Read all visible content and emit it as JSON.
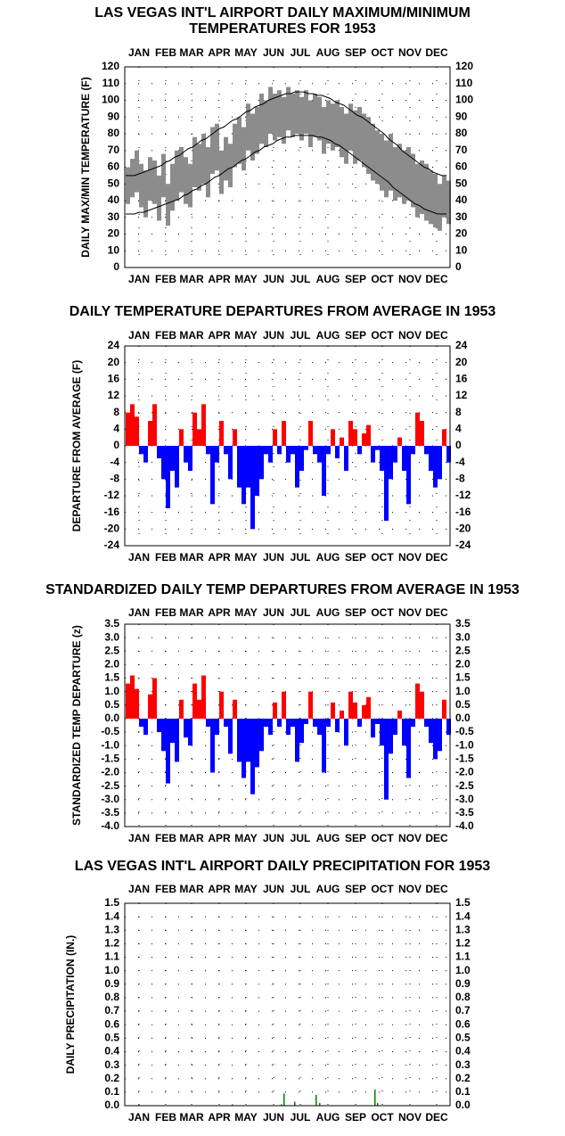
{
  "chart_data": [
    {
      "type": "range",
      "title": [
        "LAS VEGAS INT'L AIRPORT DAILY MAXIMUM/MINIMUM",
        "TEMPERATURES FOR 1953"
      ],
      "y_label": "DAILY MAX/MIN TEMPERATURE (F)",
      "xlim": [
        0,
        365
      ],
      "xticks": [
        {
          "value": 16,
          "label": "JAN"
        },
        {
          "value": 46,
          "label": "FEB"
        },
        {
          "value": 75,
          "label": "MAR"
        },
        {
          "value": 106,
          "label": "APR"
        },
        {
          "value": 136,
          "label": "MAY"
        },
        {
          "value": 167,
          "label": "JUN"
        },
        {
          "value": 197,
          "label": "JUL"
        },
        {
          "value": 228,
          "label": "AUG"
        },
        {
          "value": 259,
          "label": "SEP"
        },
        {
          "value": 289,
          "label": "OCT"
        },
        {
          "value": 320,
          "label": "NOV"
        },
        {
          "value": 350,
          "label": "DEC"
        }
      ],
      "ylim": [
        0,
        120
      ],
      "yticks": [
        0,
        10,
        20,
        30,
        40,
        50,
        60,
        70,
        80,
        90,
        100,
        110,
        120
      ],
      "grid": true,
      "bar_width": 5,
      "color": "#8c8c8c",
      "normal_color": "#000000",
      "x": [
        1,
        6,
        11,
        16,
        21,
        26,
        31,
        36,
        41,
        46,
        51,
        56,
        61,
        66,
        71,
        76,
        81,
        86,
        91,
        96,
        101,
        106,
        111,
        116,
        121,
        126,
        131,
        136,
        141,
        146,
        151,
        156,
        161,
        166,
        171,
        176,
        181,
        186,
        191,
        196,
        201,
        206,
        211,
        216,
        221,
        226,
        231,
        236,
        241,
        246,
        251,
        256,
        261,
        266,
        271,
        276,
        281,
        286,
        291,
        296,
        301,
        306,
        311,
        316,
        321,
        326,
        331,
        336,
        341,
        346,
        351,
        356,
        361
      ],
      "max_values": [
        60,
        65,
        70,
        62,
        58,
        66,
        64,
        55,
        68,
        50,
        62,
        70,
        72,
        66,
        62,
        78,
        74,
        80,
        72,
        84,
        86,
        70,
        78,
        74,
        86,
        90,
        84,
        98,
        92,
        96,
        104,
        100,
        108,
        104,
        106,
        102,
        108,
        104,
        106,
        102,
        106,
        100,
        104,
        102,
        96,
        100,
        98,
        100,
        96,
        92,
        98,
        94,
        96,
        92,
        90,
        86,
        82,
        80,
        76,
        80,
        72,
        74,
        70,
        72,
        68,
        62,
        64,
        62,
        58,
        56,
        50,
        55,
        52
      ],
      "min_values": [
        38,
        42,
        45,
        36,
        30,
        40,
        38,
        28,
        42,
        25,
        34,
        40,
        45,
        38,
        36,
        48,
        46,
        50,
        42,
        56,
        58,
        44,
        52,
        48,
        60,
        62,
        58,
        70,
        64,
        68,
        74,
        72,
        80,
        76,
        78,
        74,
        82,
        78,
        80,
        76,
        80,
        72,
        78,
        76,
        68,
        74,
        70,
        72,
        66,
        62,
        70,
        62,
        64,
        60,
        56,
        52,
        50,
        46,
        42,
        46,
        40,
        42,
        38,
        40,
        36,
        30,
        32,
        28,
        26,
        24,
        22,
        30,
        26
      ],
      "normal_max": [
        55,
        55,
        55,
        56,
        57,
        58,
        59,
        60,
        61,
        63,
        64,
        66,
        67,
        69,
        71,
        72,
        74,
        76,
        77,
        79,
        81,
        83,
        84,
        86,
        88,
        89,
        91,
        93,
        94,
        96,
        97,
        98,
        100,
        101,
        102,
        103,
        104,
        104,
        105,
        105,
        105,
        104,
        104,
        103,
        103,
        102,
        101,
        99,
        98,
        97,
        95,
        93,
        91,
        90,
        88,
        86,
        84,
        82,
        80,
        77,
        75,
        73,
        70,
        68,
        66,
        64,
        62,
        60,
        59,
        57,
        56,
        55,
        55
      ],
      "normal_min": [
        32,
        32,
        32,
        33,
        33,
        34,
        35,
        36,
        37,
        38,
        39,
        40,
        41,
        43,
        44,
        46,
        47,
        49,
        50,
        52,
        54,
        55,
        57,
        59,
        60,
        62,
        64,
        65,
        67,
        69,
        70,
        72,
        73,
        74,
        76,
        77,
        78,
        78,
        79,
        79,
        79,
        79,
        79,
        78,
        78,
        77,
        76,
        74,
        73,
        71,
        69,
        67,
        65,
        63,
        61,
        59,
        57,
        55,
        53,
        51,
        48,
        46,
        44,
        42,
        40,
        38,
        37,
        35,
        34,
        33,
        32,
        32,
        32
      ]
    },
    {
      "type": "bar",
      "title": "DAILY TEMPERATURE DEPARTURES FROM AVERAGE IN 1953",
      "y_label": "DEPARTURE FROM AVERAGE (F)",
      "xlim": [
        0,
        365
      ],
      "xticks": [
        {
          "value": 16,
          "label": "JAN"
        },
        {
          "value": 46,
          "label": "FEB"
        },
        {
          "value": 75,
          "label": "MAR"
        },
        {
          "value": 106,
          "label": "APR"
        },
        {
          "value": 136,
          "label": "MAY"
        },
        {
          "value": 167,
          "label": "JUN"
        },
        {
          "value": 197,
          "label": "JUL"
        },
        {
          "value": 228,
          "label": "AUG"
        },
        {
          "value": 259,
          "label": "SEP"
        },
        {
          "value": 289,
          "label": "OCT"
        },
        {
          "value": 320,
          "label": "NOV"
        },
        {
          "value": 350,
          "label": "DEC"
        }
      ],
      "ylim": [
        -24,
        24
      ],
      "yticks": [
        -24,
        -20,
        -16,
        -12,
        -8,
        -4,
        0,
        4,
        8,
        12,
        16,
        20,
        24
      ],
      "grid": true,
      "bar_width": 5,
      "pos_color": "#ff0000",
      "neg_color": "#0000ff",
      "x": [
        1,
        6,
        11,
        16,
        21,
        26,
        31,
        36,
        41,
        46,
        51,
        56,
        61,
        66,
        71,
        76,
        81,
        86,
        91,
        96,
        101,
        106,
        111,
        116,
        121,
        126,
        131,
        136,
        141,
        146,
        151,
        156,
        161,
        166,
        171,
        176,
        181,
        186,
        191,
        196,
        201,
        206,
        211,
        216,
        221,
        226,
        231,
        236,
        241,
        246,
        251,
        256,
        261,
        266,
        271,
        276,
        281,
        286,
        291,
        296,
        301,
        306,
        311,
        316,
        321,
        326,
        331,
        336,
        341,
        346,
        351,
        356,
        361
      ],
      "values": [
        8,
        10,
        7,
        -2,
        -4,
        6,
        10,
        -3,
        -8,
        -15,
        -6,
        -10,
        4,
        -4,
        -6,
        8,
        4,
        10,
        -2,
        -14,
        -4,
        6,
        -2,
        -8,
        4,
        -10,
        -14,
        -10,
        -20,
        -12,
        -8,
        -2,
        -4,
        4,
        -2,
        6,
        -4,
        -2,
        -10,
        -6,
        -1,
        6,
        -2,
        -4,
        -12,
        -2,
        4,
        -3,
        2,
        -6,
        6,
        4,
        -2,
        3,
        5,
        -4,
        -1,
        -6,
        -18,
        -8,
        -4,
        2,
        -6,
        -14,
        -2,
        8,
        6,
        -2,
        -6,
        -10,
        -8,
        4,
        -4
      ]
    },
    {
      "type": "bar",
      "title": "STANDARDIZED DAILY TEMP DEPARTURES FROM AVERAGE IN 1953",
      "y_label": "STANDARDIZED TEMP DEPARTURE (z)",
      "xlim": [
        0,
        365
      ],
      "xticks": [
        {
          "value": 16,
          "label": "JAN"
        },
        {
          "value": 46,
          "label": "FEB"
        },
        {
          "value": 75,
          "label": "MAR"
        },
        {
          "value": 106,
          "label": "APR"
        },
        {
          "value": 136,
          "label": "MAY"
        },
        {
          "value": 167,
          "label": "JUN"
        },
        {
          "value": 197,
          "label": "JUL"
        },
        {
          "value": 228,
          "label": "AUG"
        },
        {
          "value": 259,
          "label": "SEP"
        },
        {
          "value": 289,
          "label": "OCT"
        },
        {
          "value": 320,
          "label": "NOV"
        },
        {
          "value": 350,
          "label": "DEC"
        }
      ],
      "ylim": [
        -4,
        3.5
      ],
      "yticks": [
        {
          "value": -4,
          "label": "-4.0"
        },
        -3.5,
        {
          "value": -3,
          "label": "-3.0"
        },
        -2.5,
        {
          "value": -2,
          "label": "-2.0"
        },
        -1.5,
        {
          "value": -1,
          "label": "-1.0"
        },
        -0.5,
        {
          "value": 0,
          "label": "0.0"
        },
        0.5,
        {
          "value": 1,
          "label": "1.0"
        },
        1.5,
        {
          "value": 2,
          "label": "2.0"
        },
        2.5,
        {
          "value": 3,
          "label": "3.0"
        },
        3.5
      ],
      "grid": true,
      "bar_width": 5,
      "pos_color": "#ff0000",
      "neg_color": "#0000ff",
      "x": [
        1,
        6,
        11,
        16,
        21,
        26,
        31,
        36,
        41,
        46,
        51,
        56,
        61,
        66,
        71,
        76,
        81,
        86,
        91,
        96,
        101,
        106,
        111,
        116,
        121,
        126,
        131,
        136,
        141,
        146,
        151,
        156,
        161,
        166,
        171,
        176,
        181,
        186,
        191,
        196,
        201,
        206,
        211,
        216,
        221,
        226,
        231,
        236,
        241,
        246,
        251,
        256,
        261,
        266,
        271,
        276,
        281,
        286,
        291,
        296,
        301,
        306,
        311,
        316,
        321,
        326,
        331,
        336,
        341,
        346,
        351,
        356,
        361
      ],
      "values": [
        1.3,
        1.6,
        1.1,
        -0.3,
        -0.6,
        0.9,
        1.5,
        -0.5,
        -1.2,
        -2.4,
        -0.9,
        -1.6,
        0.7,
        -0.7,
        -1.0,
        1.3,
        0.7,
        1.6,
        -0.3,
        -2.0,
        -0.6,
        1.0,
        -0.3,
        -1.3,
        0.7,
        -1.6,
        -2.2,
        -1.6,
        -2.8,
        -1.8,
        -1.2,
        -0.3,
        -0.6,
        0.6,
        -0.3,
        1.0,
        -0.6,
        -0.3,
        -1.6,
        -0.9,
        -0.2,
        1.0,
        -0.3,
        -0.6,
        -2.0,
        -0.3,
        0.6,
        -0.5,
        0.3,
        -1.0,
        1.0,
        0.6,
        -0.3,
        0.5,
        0.8,
        -0.7,
        -0.2,
        -1.0,
        -3.0,
        -1.3,
        -0.6,
        0.3,
        -1.0,
        -2.2,
        -0.3,
        1.3,
        1.0,
        -0.3,
        -0.9,
        -1.5,
        -1.2,
        0.7,
        -0.6
      ]
    },
    {
      "type": "bar",
      "title": "LAS VEGAS INT'L AIRPORT DAILY PRECIPITATION FOR 1953",
      "y_label": "DAILY PRECIPITATION (IN.)",
      "xlim": [
        0,
        365
      ],
      "xticks": [
        {
          "value": 16,
          "label": "JAN"
        },
        {
          "value": 46,
          "label": "FEB"
        },
        {
          "value": 75,
          "label": "MAR"
        },
        {
          "value": 106,
          "label": "APR"
        },
        {
          "value": 136,
          "label": "MAY"
        },
        {
          "value": 167,
          "label": "JUN"
        },
        {
          "value": 197,
          "label": "JUL"
        },
        {
          "value": 228,
          "label": "AUG"
        },
        {
          "value": 259,
          "label": "SEP"
        },
        {
          "value": 289,
          "label": "OCT"
        },
        {
          "value": 320,
          "label": "NOV"
        },
        {
          "value": 350,
          "label": "DEC"
        }
      ],
      "ylim": [
        0,
        1.5
      ],
      "yticks": [
        {
          "value": 0,
          "label": "0.0"
        },
        0.1,
        0.2,
        0.3,
        0.4,
        0.5,
        0.6,
        0.7,
        0.8,
        0.9,
        {
          "value": 1,
          "label": "1.0"
        },
        1.1,
        1.2,
        1.3,
        1.4,
        1.5
      ],
      "grid": true,
      "bar_width": 1.5,
      "pos_color": "#008000",
      "neg_color": "#008000",
      "x": [
        15,
        120,
        175,
        178,
        190,
        214,
        218,
        280,
        283
      ],
      "values": [
        0.01,
        0.01,
        0.01,
        0.09,
        0.03,
        0.08,
        0.02,
        0.12,
        0.02
      ]
    }
  ]
}
